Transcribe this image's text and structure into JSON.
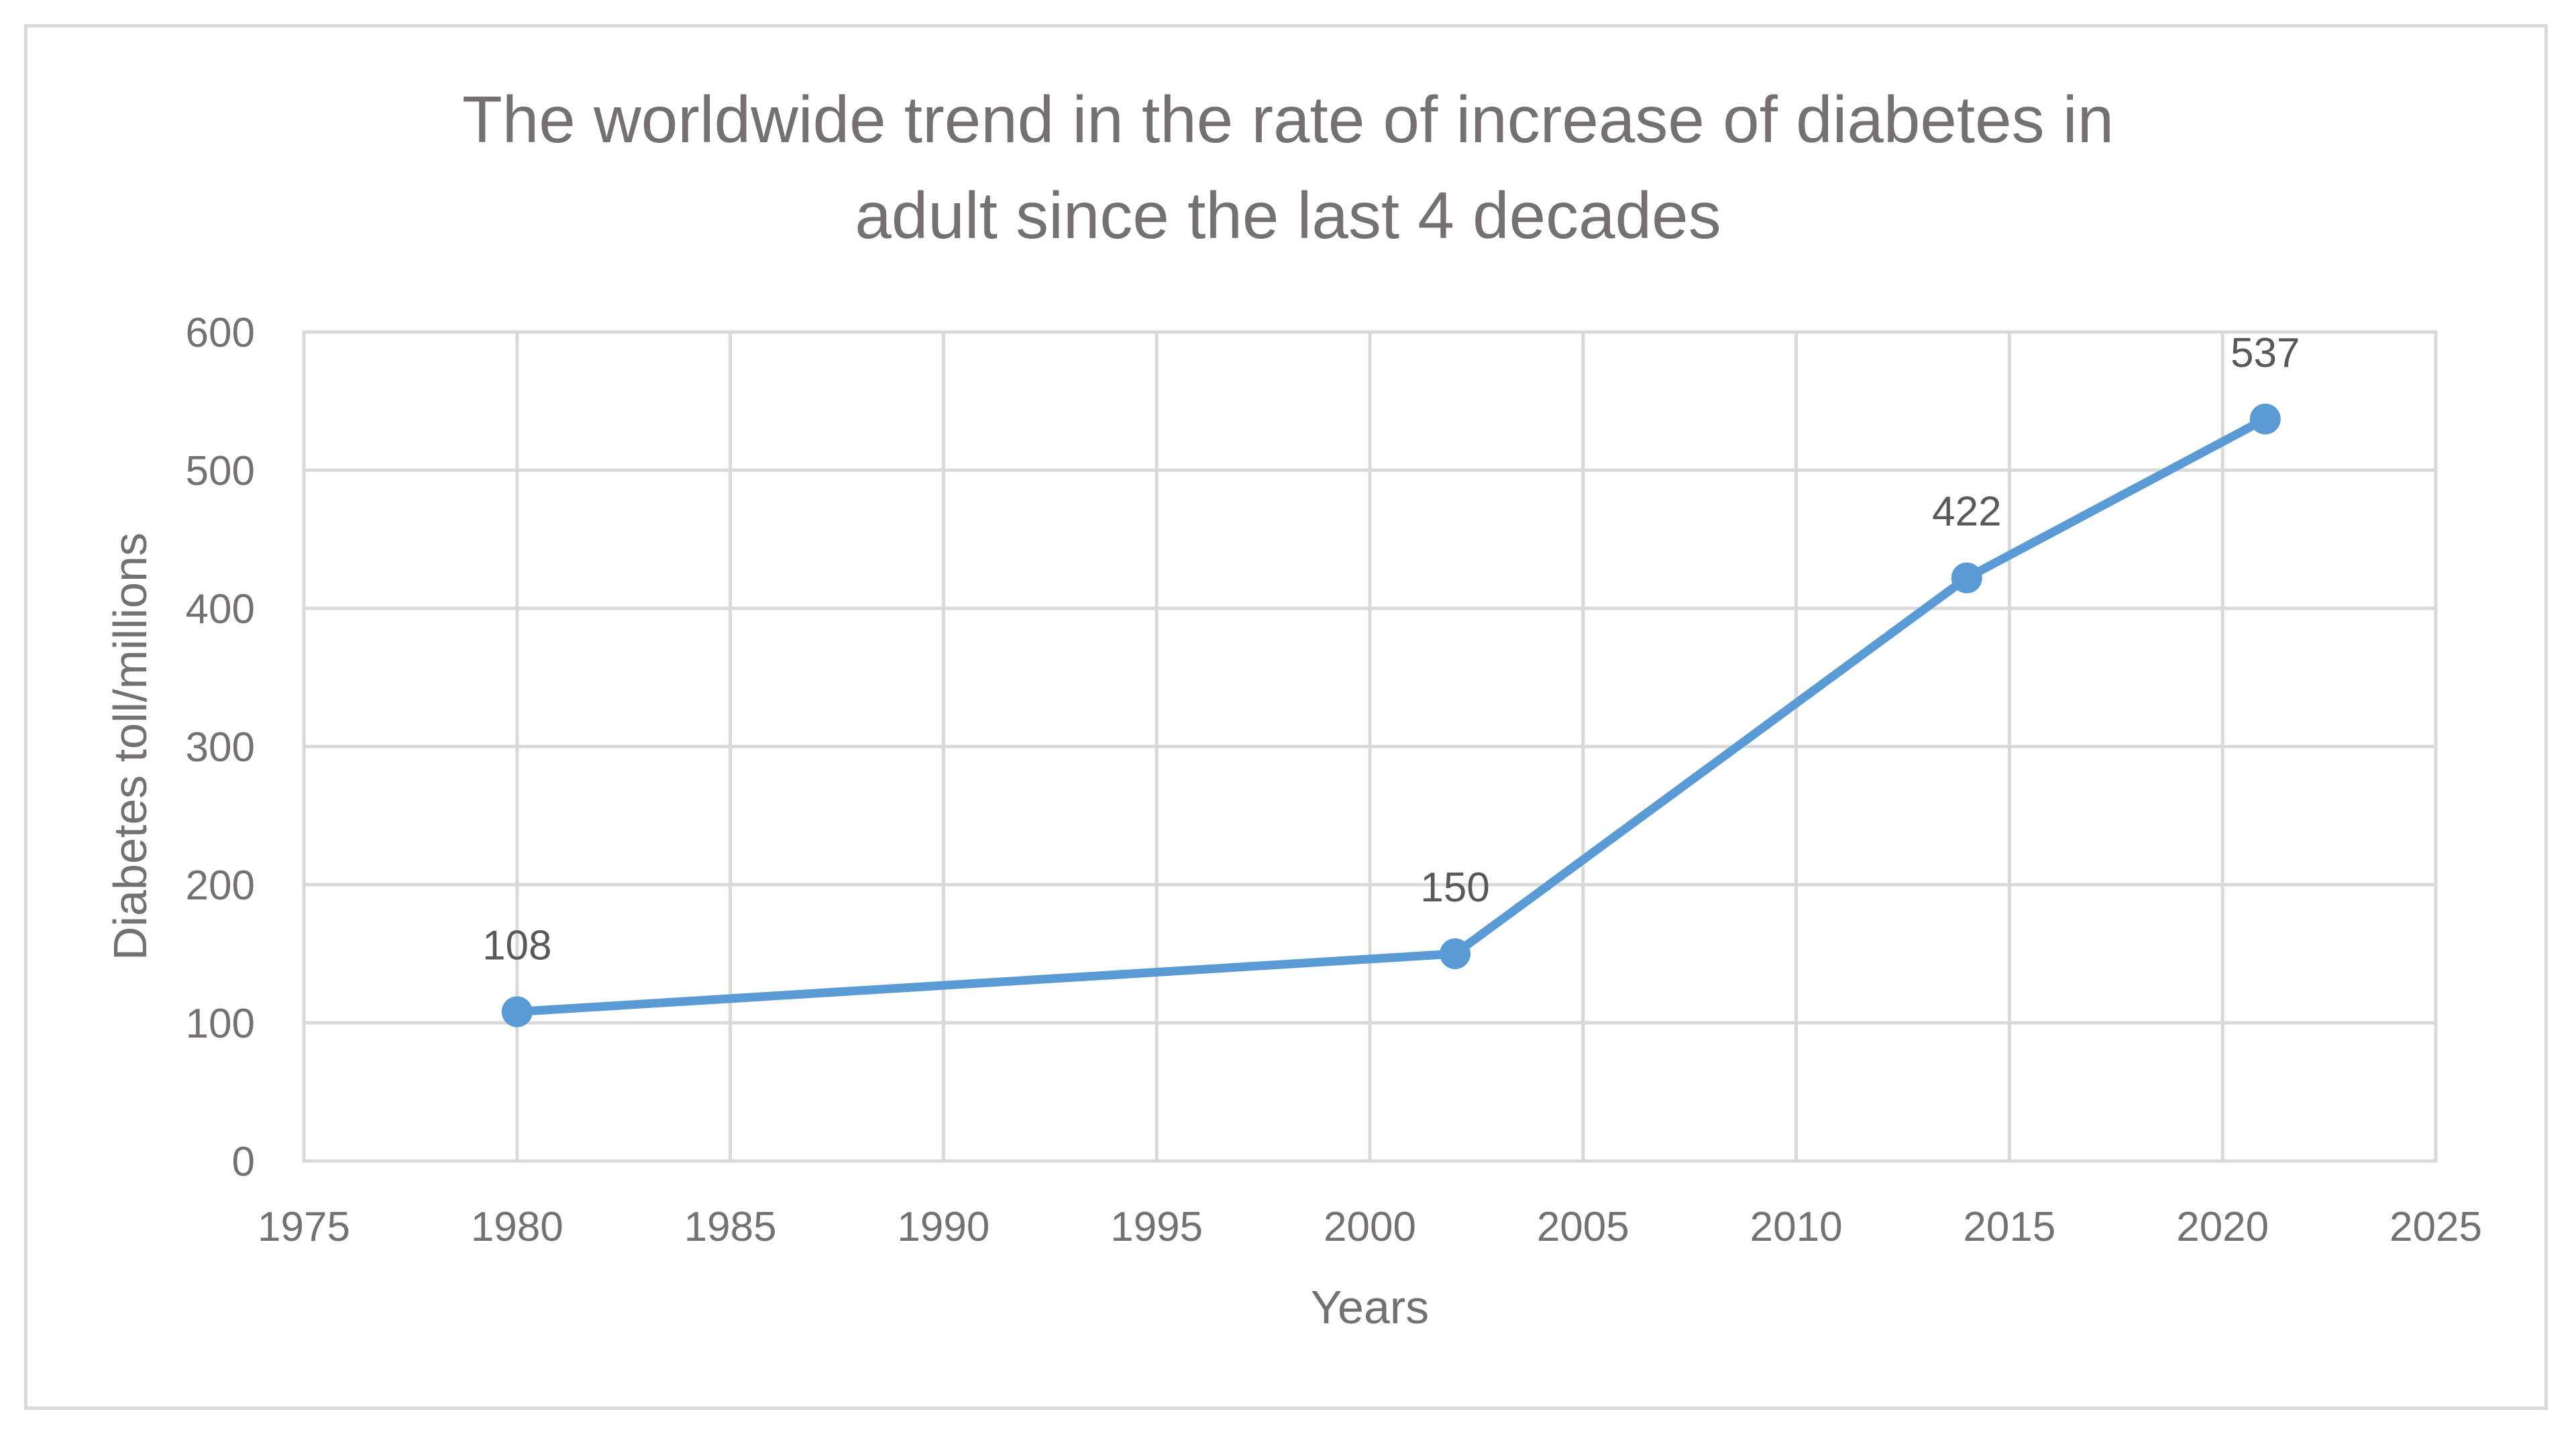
{
  "chart_data": {
    "type": "scatter",
    "title_lines": [
      "The worldwide trend in the rate of increase of diabetes in",
      "adult since the last 4 decades"
    ],
    "xlabel": "Years",
    "ylabel": "Diabetes toll/millions",
    "xlim": [
      1975,
      2025
    ],
    "ylim": [
      0,
      600
    ],
    "x_ticks": [
      1975,
      1980,
      1985,
      1990,
      1995,
      2000,
      2005,
      2010,
      2015,
      2020,
      2025
    ],
    "y_ticks": [
      0,
      100,
      200,
      300,
      400,
      500,
      600
    ],
    "grid": true,
    "legend": "none",
    "series": [
      {
        "name": "Diabetes toll",
        "color": "#5b9bd5",
        "points": [
          {
            "x": 1980,
            "y": 108,
            "label": "108"
          },
          {
            "x": 2002,
            "y": 150,
            "label": "150"
          },
          {
            "x": 2014,
            "y": 422,
            "label": "422"
          },
          {
            "x": 2021,
            "y": 537,
            "label": "537"
          }
        ]
      }
    ]
  }
}
